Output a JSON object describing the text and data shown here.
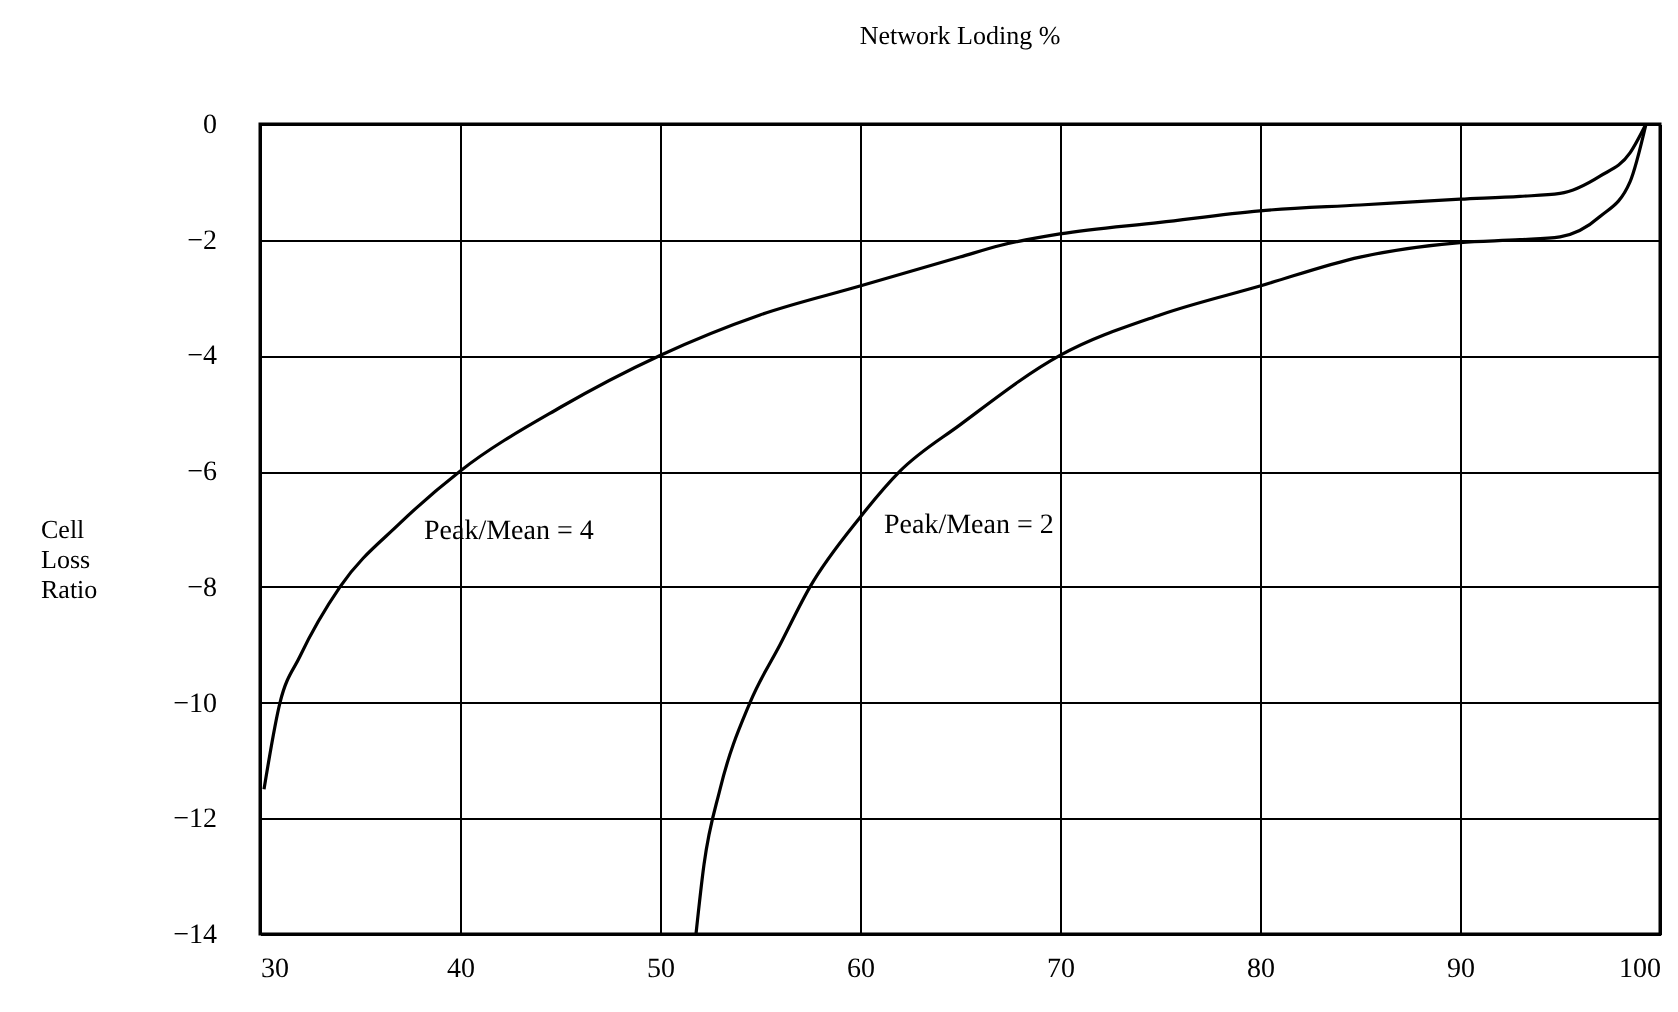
{
  "chart_data": {
    "type": "line",
    "title": "Network Loding %",
    "ylabel": "Cell Loss Ratio",
    "xlim": [
      30,
      100
    ],
    "xticks": [
      30,
      40,
      50,
      60,
      70,
      80,
      90,
      100
    ],
    "ylim": [
      -14,
      0
    ],
    "yticks": [
      0,
      -2,
      -4,
      -6,
      -8,
      -10,
      -12,
      -14
    ],
    "grid": true,
    "series": [
      {
        "name": "Peak/Mean = 4",
        "color": "#000000",
        "x": [
          30.2,
          31,
          32,
          34,
          37,
          40,
          45,
          50,
          55,
          60,
          65,
          67,
          70,
          75,
          80,
          85,
          90,
          93,
          95,
          97,
          98.5,
          99.3
        ],
        "values": [
          -11.5,
          -10,
          -9.2,
          -8,
          -6.9,
          -6,
          -4.9,
          -4,
          -3.3,
          -2.8,
          -2.3,
          -2.1,
          -1.9,
          -1.7,
          -1.5,
          -1.4,
          -1.3,
          -1.25,
          -1.2,
          -0.9,
          -0.5,
          0
        ]
      },
      {
        "name": "Peak/Mean = 2",
        "color": "#000000",
        "x": [
          51.8,
          52.2,
          53,
          54.5,
          56,
          57.5,
          60,
          62,
          65,
          70,
          75,
          80,
          85,
          90,
          93,
          95,
          97,
          98.5,
          99.3
        ],
        "values": [
          -14,
          -12.8,
          -11.5,
          -10,
          -9,
          -8,
          -6.8,
          -6,
          -5.2,
          -4,
          -3.3,
          -2.8,
          -2.3,
          -2.05,
          -2,
          -1.95,
          -1.6,
          -1,
          0
        ]
      }
    ],
    "line_style": "solid"
  }
}
